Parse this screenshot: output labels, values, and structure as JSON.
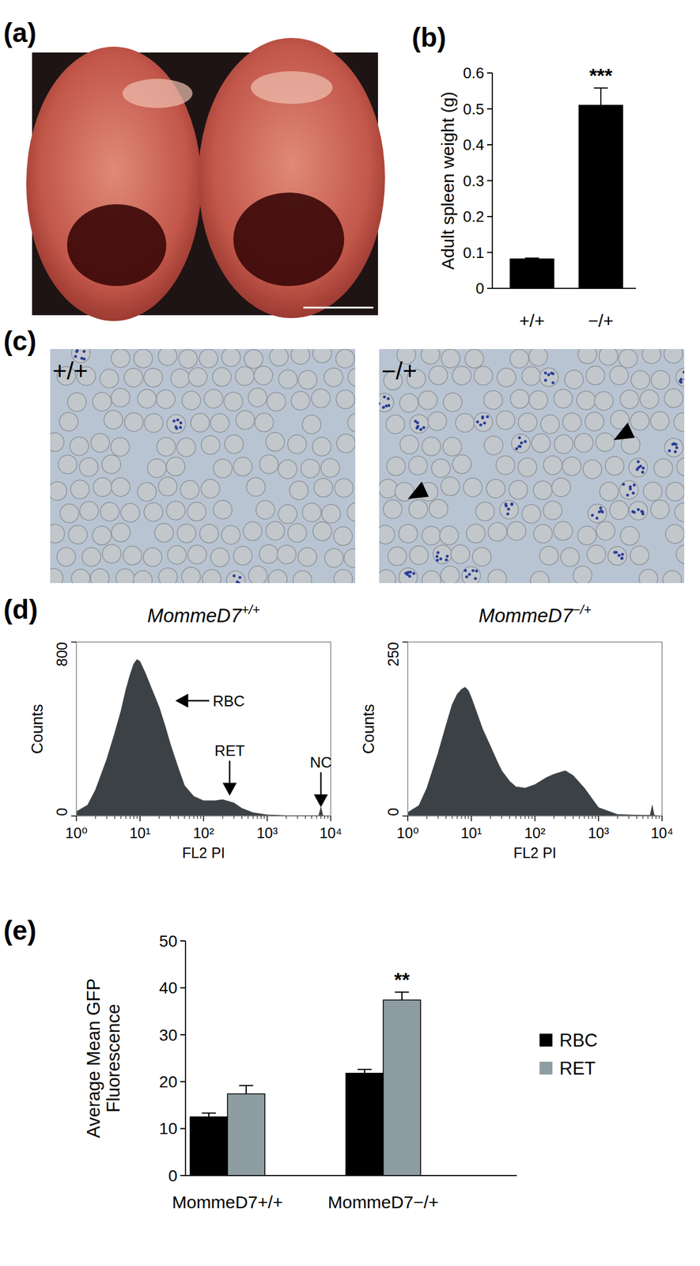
{
  "panel_labels": [
    "(a)",
    "(b)",
    "(c)",
    "(d)",
    "(e)"
  ],
  "smear_labels": [
    "+/+",
    "−/+"
  ],
  "chart_data": [
    {
      "type": "bar",
      "ylabel": "Adult spleen weight (g)",
      "categories": [
        "+/+",
        "−/+"
      ],
      "values": [
        0.082,
        0.51
      ],
      "errors": [
        0.002,
        0.048
      ],
      "significance": [
        null,
        "***"
      ],
      "color": "#000000",
      "ylim": [
        0,
        0.6
      ],
      "yticks": [
        0,
        0.1,
        0.2,
        0.3,
        0.4,
        0.5,
        0.6
      ]
    },
    {
      "type": "area",
      "title": "MommeD7+/+",
      "xlabel": "FL2 PI",
      "ylabel": "Counts",
      "log": "x",
      "x": [
        1,
        1.5,
        2,
        3,
        4,
        5,
        6,
        7,
        8,
        9,
        10,
        12,
        15,
        20,
        25,
        30,
        40,
        50,
        70,
        100,
        150,
        200,
        300,
        400,
        600,
        1000,
        2000,
        5000,
        6500,
        7000,
        7500,
        10000
      ],
      "values": [
        20,
        50,
        120,
        260,
        380,
        480,
        580,
        650,
        700,
        720,
        710,
        660,
        590,
        500,
        410,
        330,
        220,
        140,
        90,
        70,
        70,
        75,
        60,
        35,
        15,
        5,
        2,
        2,
        2,
        40,
        2,
        0
      ],
      "color": "#3c4145",
      "xlim": [
        1,
        10000
      ],
      "xticks": [
        {
          "value": 1,
          "label": "10⁰"
        },
        {
          "value": 10,
          "label": "10¹"
        },
        {
          "value": 100,
          "label": "10²"
        },
        {
          "value": 1000,
          "label": "10³"
        },
        {
          "value": 10000,
          "label": "10⁴"
        }
      ],
      "ylim": [
        0,
        800
      ],
      "yticks": [
        0,
        800
      ],
      "annotations": [
        {
          "text": "RBC",
          "x": 36,
          "y": 530,
          "arrow": "left"
        },
        {
          "text": "RET",
          "x": 257,
          "y": 93,
          "arrow": "down"
        },
        {
          "text": "NC",
          "x": 7000,
          "y": 40,
          "arrow": "down"
        }
      ]
    },
    {
      "type": "area",
      "title": "MommeD7−/+",
      "xlabel": "FL2 PI",
      "ylabel": "Counts",
      "log": "x",
      "x": [
        1,
        1.5,
        2,
        3,
        4,
        5,
        6,
        7,
        8,
        9,
        10,
        12,
        15,
        20,
        25,
        30,
        40,
        50,
        70,
        100,
        150,
        200,
        300,
        400,
        600,
        1000,
        2000,
        5000,
        6500,
        7000,
        7500,
        10000
      ],
      "values": [
        5,
        15,
        40,
        90,
        130,
        160,
        175,
        182,
        185,
        180,
        170,
        150,
        125,
        100,
        80,
        65,
        50,
        42,
        40,
        45,
        55,
        60,
        65,
        58,
        40,
        12,
        2,
        1,
        1,
        15,
        1,
        0
      ],
      "color": "#3c4145",
      "xlim": [
        1,
        10000
      ],
      "xticks": [
        {
          "value": 1,
          "label": "10⁰"
        },
        {
          "value": 10,
          "label": "10¹"
        },
        {
          "value": 100,
          "label": "10²"
        },
        {
          "value": 1000,
          "label": "10³"
        },
        {
          "value": 10000,
          "label": "10⁴"
        }
      ],
      "ylim": [
        0,
        250
      ],
      "yticks": [
        0,
        250
      ]
    },
    {
      "type": "bar",
      "ylabel": "Average Mean GFP Fluorescence",
      "categories": [
        "MommeD7+/+",
        "MommeD7−/+"
      ],
      "series": [
        {
          "name": "RBC",
          "color": "#000000",
          "values": [
            12.5,
            21.8
          ],
          "errors": [
            0.8,
            0.8
          ],
          "significance": [
            null,
            null
          ]
        },
        {
          "name": "RET",
          "color": "#8e9da2",
          "values": [
            17.4,
            37.4
          ],
          "errors": [
            1.8,
            1.7
          ],
          "significance": [
            null,
            "**"
          ]
        }
      ],
      "ylim": [
        0,
        50
      ],
      "yticks": [
        0,
        10,
        20,
        30,
        40,
        50
      ],
      "legend": "right"
    }
  ]
}
